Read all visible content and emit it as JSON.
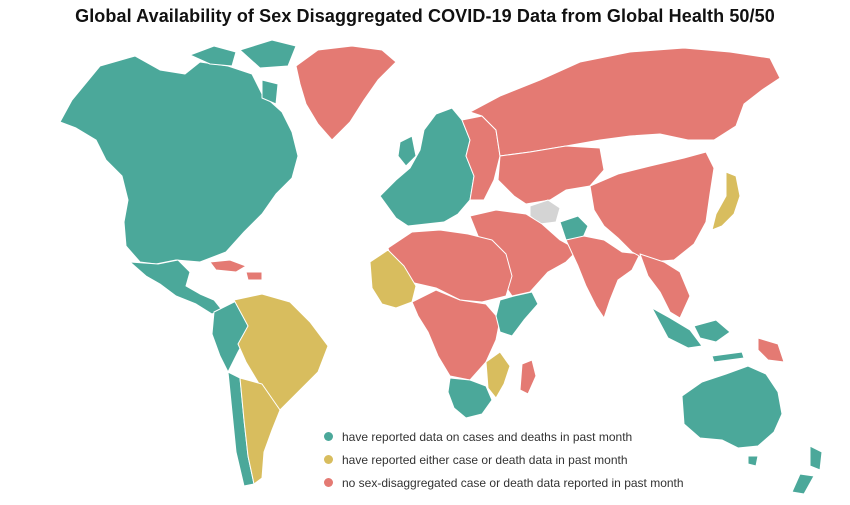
{
  "title": "Global Availability of Sex Disaggregated COVID-19 Data from Global Health 50/50",
  "colors": {
    "reported_both": "#4ba89a",
    "reported_either": "#d8bd5e",
    "not_reported": "#e47a73",
    "no_data": "#d4d4d4",
    "border": "#ffffff"
  },
  "legend": [
    {
      "label": "have reported data on cases and deaths in past month",
      "category": "reported_both"
    },
    {
      "label": "have reported either case or death data in past month",
      "category": "reported_either"
    },
    {
      "label": "no sex-disaggregated case or death data reported in past month",
      "category": "not_reported"
    }
  ],
  "regions": {
    "north_america": "reported_both",
    "greenland": "not_reported",
    "mexico_central_america": "reported_both",
    "caribbean": "not_reported",
    "brazil": "reported_either",
    "argentina": "reported_either",
    "chile": "reported_both",
    "western_south_america": "reported_both",
    "western_europe": "reported_both",
    "eastern_europe": "not_reported",
    "russia": "not_reported",
    "central_asia": "not_reported",
    "afghanistan": "reported_both",
    "middle_east": "not_reported",
    "india_south_asia": "not_reported",
    "china": "not_reported",
    "japan": "reported_either",
    "southeast_asia": "not_reported",
    "indonesia": "reported_both",
    "papua_new_guinea": "not_reported",
    "australia": "reported_both",
    "new_zealand": "reported_both",
    "north_africa": "not_reported",
    "sahel_west_africa": "reported_either",
    "central_africa": "not_reported",
    "east_africa": "reported_both",
    "southern_africa": "reported_both",
    "mozambique": "reported_either",
    "madagascar": "not_reported",
    "turkmenistan": "no_data"
  }
}
